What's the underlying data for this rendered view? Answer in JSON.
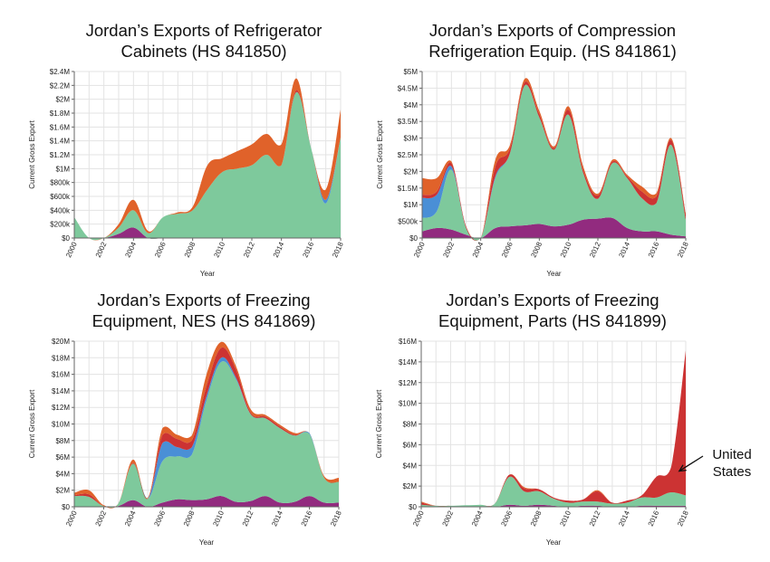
{
  "colors": {
    "green": "#7ec99c",
    "orange": "#e0622a",
    "red": "#cc3333",
    "blue": "#4a8fd6",
    "purple": "#922b7f",
    "grid": "#e3e3e3",
    "axis": "#666666"
  },
  "chart_data": [
    {
      "type": "area",
      "title": "Jordan’s Exports of Refrigerator Cabinets (HS 841850)",
      "title_lines": [
        "Jordan’s Exports of Refrigerator",
        "Cabinets (HS 841850)"
      ],
      "xlabel": "Year",
      "ylabel": "Current Gross Export",
      "x": [
        2000,
        2001,
        2002,
        2003,
        2004,
        2005,
        2006,
        2007,
        2008,
        2009,
        2010,
        2011,
        2012,
        2013,
        2014,
        2015,
        2016,
        2017,
        2018
      ],
      "xlim": [
        2000,
        2018
      ],
      "ylim": [
        0,
        2400000
      ],
      "y_ticks": [
        0,
        200000,
        400000,
        600000,
        800000,
        1000000,
        1200000,
        1400000,
        1600000,
        1800000,
        2000000,
        2200000,
        2400000
      ],
      "y_tick_labels": [
        "$0",
        "$200k",
        "$400k",
        "$600k",
        "$800k",
        "$1M",
        "$1.2M",
        "$1.4M",
        "$1.6M",
        "$1.8M",
        "$2M",
        "$2.2M",
        "$2.4M"
      ],
      "x_ticks": [
        2000,
        2002,
        2004,
        2006,
        2008,
        2010,
        2012,
        2014,
        2016,
        2018
      ],
      "x_tick_labels": [
        "2000",
        "2002",
        "2004",
        "2006",
        "2008",
        "2010",
        "2012",
        "2014",
        "2016",
        "2018"
      ],
      "grid": true,
      "series": [
        {
          "color": "purple",
          "values": [
            0,
            0,
            0,
            60000,
            150000,
            0,
            0,
            0,
            0,
            0,
            0,
            0,
            0,
            0,
            0,
            0,
            0,
            0,
            0
          ]
        },
        {
          "color": "green",
          "values": [
            300000,
            0,
            0,
            90000,
            250000,
            70000,
            300000,
            350000,
            400000,
            700000,
            950000,
            1000000,
            1050000,
            1200000,
            1050000,
            2100000,
            1300000,
            500000,
            1450000
          ]
        },
        {
          "color": "blue",
          "values": [
            0,
            0,
            0,
            0,
            0,
            0,
            0,
            0,
            0,
            0,
            0,
            0,
            0,
            0,
            0,
            0,
            0,
            50000,
            0
          ]
        },
        {
          "color": "red",
          "values": [
            0,
            0,
            0,
            0,
            0,
            0,
            0,
            0,
            0,
            0,
            0,
            0,
            0,
            0,
            0,
            30000,
            0,
            0,
            0
          ]
        },
        {
          "color": "orange",
          "values": [
            0,
            0,
            0,
            50000,
            150000,
            30000,
            0,
            20000,
            50000,
            350000,
            200000,
            250000,
            300000,
            300000,
            300000,
            170000,
            0,
            150000,
            400000
          ]
        }
      ]
    },
    {
      "type": "area",
      "title": "Jordan’s Exports of Compression Refrigeration Equip. (HS 841861)",
      "title_lines": [
        "Jordan’s Exports of Compression",
        "Refrigeration Equip. (HS 841861)"
      ],
      "xlabel": "Year",
      "ylabel": "Current Gross Export",
      "x": [
        2000,
        2001,
        2002,
        2003,
        2004,
        2005,
        2006,
        2007,
        2008,
        2009,
        2010,
        2011,
        2012,
        2013,
        2014,
        2015,
        2016,
        2017,
        2018
      ],
      "xlim": [
        2000,
        2018
      ],
      "ylim": [
        0,
        5000000
      ],
      "y_ticks": [
        0,
        500000,
        1000000,
        1500000,
        2000000,
        2500000,
        3000000,
        3500000,
        4000000,
        4500000,
        5000000
      ],
      "y_tick_labels": [
        "$0",
        "$500k",
        "$1M",
        "$1.5M",
        "$2M",
        "$2.5M",
        "$3M",
        "$3.5M",
        "$4M",
        "$4.5M",
        "$5M"
      ],
      "x_ticks": [
        2000,
        2002,
        2004,
        2006,
        2008,
        2010,
        2012,
        2014,
        2016,
        2018
      ],
      "x_tick_labels": [
        "2000",
        "2002",
        "2004",
        "2006",
        "2008",
        "2010",
        "2012",
        "2014",
        "2016",
        "2018"
      ],
      "grid": true,
      "series": [
        {
          "color": "purple",
          "values": [
            200000,
            300000,
            250000,
            100000,
            0,
            300000,
            350000,
            380000,
            420000,
            350000,
            400000,
            550000,
            580000,
            600000,
            300000,
            200000,
            200000,
            100000,
            50000
          ]
        },
        {
          "color": "green",
          "values": [
            400000,
            500000,
            1800000,
            200000,
            0,
            1500000,
            2200000,
            4200000,
            3200000,
            2300000,
            3300000,
            1400000,
            600000,
            1650000,
            1500000,
            1000000,
            850000,
            2700000,
            500000
          ]
        },
        {
          "color": "blue",
          "values": [
            600000,
            500000,
            100000,
            0,
            0,
            50000,
            0,
            0,
            0,
            0,
            0,
            0,
            0,
            0,
            0,
            0,
            0,
            0,
            0
          ]
        },
        {
          "color": "red",
          "values": [
            100000,
            100000,
            100000,
            50000,
            0,
            300000,
            150000,
            100000,
            100000,
            50000,
            150000,
            100000,
            100000,
            50000,
            50000,
            200000,
            200000,
            150000,
            150000
          ]
        },
        {
          "color": "orange",
          "values": [
            500000,
            400000,
            50000,
            0,
            0,
            200000,
            100000,
            100000,
            100000,
            50000,
            100000,
            100000,
            50000,
            50000,
            50000,
            150000,
            100000,
            50000,
            50000
          ]
        }
      ]
    },
    {
      "type": "area",
      "title": "Jordan’s Exports of Freezing Equipment, NES (HS 841869)",
      "title_lines": [
        "Jordan’s Exports of Freezing",
        "Equipment, NES (HS 841869)"
      ],
      "xlabel": "Year",
      "ylabel": "Current Gross Export",
      "x": [
        2000,
        2001,
        2002,
        2003,
        2004,
        2005,
        2006,
        2007,
        2008,
        2009,
        2010,
        2011,
        2012,
        2013,
        2014,
        2015,
        2016,
        2017,
        2018
      ],
      "xlim": [
        2000,
        2018
      ],
      "ylim": [
        0,
        20000000
      ],
      "y_ticks": [
        0,
        2000000,
        4000000,
        6000000,
        8000000,
        10000000,
        12000000,
        14000000,
        16000000,
        18000000,
        20000000
      ],
      "y_tick_labels": [
        "$0",
        "$2M",
        "$4M",
        "$6M",
        "$8M",
        "$10M",
        "$12M",
        "$14M",
        "$16M",
        "$18M",
        "$20M"
      ],
      "x_ticks": [
        2000,
        2002,
        2004,
        2006,
        2008,
        2010,
        2012,
        2014,
        2016,
        2018
      ],
      "x_tick_labels": [
        "2000",
        "2002",
        "2004",
        "2006",
        "2008",
        "2010",
        "2012",
        "2014",
        "2016",
        "2018"
      ],
      "grid": true,
      "series": [
        {
          "color": "purple",
          "values": [
            0,
            0,
            0,
            100000,
            800000,
            0,
            500000,
            900000,
            800000,
            900000,
            1300000,
            600000,
            700000,
            1300000,
            500000,
            600000,
            1300000,
            500000,
            500000
          ]
        },
        {
          "color": "green",
          "values": [
            1300000,
            1200000,
            100000,
            300000,
            4400000,
            1000000,
            5000000,
            5200000,
            5500000,
            12000000,
            16200000,
            14800000,
            10500000,
            9400000,
            9000000,
            8000000,
            7500000,
            3000000,
            2500000
          ]
        },
        {
          "color": "blue",
          "values": [
            0,
            0,
            0,
            0,
            0,
            0,
            2200000,
            1100000,
            900000,
            500000,
            500000,
            200000,
            0,
            0,
            0,
            0,
            100000,
            0,
            0
          ]
        },
        {
          "color": "red",
          "values": [
            100000,
            300000,
            0,
            0,
            100000,
            0,
            1000000,
            1000000,
            800000,
            1200000,
            1200000,
            1000000,
            200000,
            200000,
            200000,
            100000,
            0,
            0,
            0
          ]
        },
        {
          "color": "orange",
          "values": [
            300000,
            500000,
            100000,
            0,
            400000,
            100000,
            800000,
            500000,
            600000,
            1400000,
            700000,
            400000,
            400000,
            200000,
            200000,
            200000,
            0,
            200000,
            500000
          ]
        }
      ]
    },
    {
      "type": "area",
      "title": "Jordan’s Exports of Freezing Equipment, Parts (HS 841899)",
      "title_lines": [
        "Jordan’s Exports of Freezing",
        "Equipment, Parts (HS 841899)"
      ],
      "xlabel": "Year",
      "ylabel": "Current Gross Export",
      "x": [
        2000,
        2001,
        2002,
        2003,
        2004,
        2005,
        2006,
        2007,
        2008,
        2009,
        2010,
        2011,
        2012,
        2013,
        2014,
        2015,
        2016,
        2017,
        2018
      ],
      "xlim": [
        2000,
        2018
      ],
      "ylim": [
        0,
        16000000
      ],
      "y_ticks": [
        0,
        2000000,
        4000000,
        6000000,
        8000000,
        10000000,
        12000000,
        14000000,
        16000000
      ],
      "y_tick_labels": [
        "$0",
        "$2M",
        "$4M",
        "$6M",
        "$8M",
        "$10M",
        "$12M",
        "$14M",
        "$16M"
      ],
      "x_ticks": [
        2000,
        2002,
        2004,
        2006,
        2008,
        2010,
        2012,
        2014,
        2016,
        2018
      ],
      "x_tick_labels": [
        "2000",
        "2002",
        "2004",
        "2006",
        "2008",
        "2010",
        "2012",
        "2014",
        "2016",
        "2018"
      ],
      "grid": true,
      "annotation": {
        "text": "United States",
        "lines": [
          "United",
          "States"
        ],
        "x": 2017,
        "series_index": 2
      },
      "series": [
        {
          "color": "purple",
          "values": [
            0,
            0,
            0,
            0,
            0,
            0,
            200000,
            100000,
            200000,
            100000,
            0,
            100000,
            100000,
            0,
            0,
            100000,
            100000,
            100000,
            100000
          ]
        },
        {
          "color": "green",
          "values": [
            200000,
            100000,
            100000,
            150000,
            200000,
            300000,
            2700000,
            1400000,
            1300000,
            700000,
            400000,
            400000,
            400000,
            300000,
            400000,
            800000,
            800000,
            1300000,
            1000000
          ]
        },
        {
          "color": "red",
          "values": [
            200000,
            0,
            0,
            0,
            0,
            0,
            200000,
            300000,
            200000,
            100000,
            200000,
            200000,
            1000000,
            100000,
            200000,
            200000,
            2000000,
            2400000,
            14000000
          ]
        },
        {
          "color": "orange",
          "values": [
            100000,
            0,
            0,
            0,
            0,
            0,
            0,
            100000,
            0,
            0,
            0,
            0,
            100000,
            0,
            0,
            0,
            0,
            0,
            0
          ]
        }
      ]
    }
  ]
}
